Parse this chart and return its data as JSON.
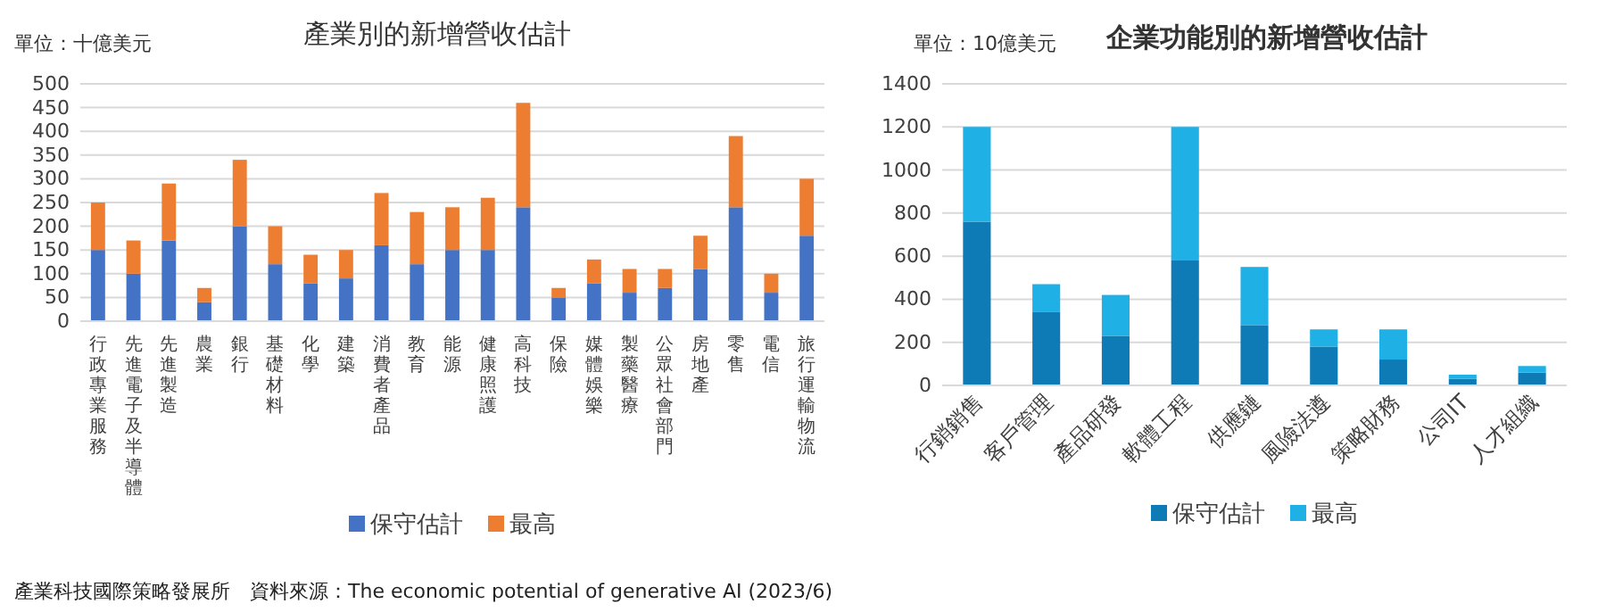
{
  "chart_data": [
    {
      "type": "bar",
      "title": "產業別的新增營收估計",
      "ylabel": "單位：十億美元",
      "stacked": true,
      "grid": "y",
      "legend": "bottom",
      "categories": [
        "行政專業服務",
        "先進電子及半導體",
        "先進製造",
        "農業",
        "銀行",
        "基礎材料",
        "化學",
        "建築",
        "消費者產品",
        "教育",
        "能源",
        "健康照護",
        "高科技",
        "保險",
        "媒體娛樂",
        "製藥醫療",
        "公眾社會部門",
        "房地產",
        "零售",
        "電信",
        "旅行運輸物流"
      ],
      "series": [
        {
          "name": "保守估計",
          "color": "#4472c4",
          "values": [
            150,
            100,
            170,
            40,
            200,
            120,
            80,
            90,
            160,
            120,
            150,
            150,
            240,
            50,
            80,
            60,
            70,
            110,
            240,
            60,
            180
          ]
        },
        {
          "name": "最高",
          "color": "#ed7d31",
          "values": [
            100,
            70,
            120,
            30,
            140,
            80,
            60,
            60,
            110,
            110,
            90,
            110,
            220,
            20,
            50,
            50,
            40,
            70,
            150,
            40,
            120
          ]
        }
      ],
      "ylim": [
        0,
        500
      ],
      "yticks": [
        0,
        50,
        100,
        150,
        200,
        250,
        300,
        350,
        400,
        450,
        500
      ],
      "annotations": [
        "產業科技國際策略發展所　資料來源：The economic potential of generative AI (2023/6)"
      ]
    },
    {
      "type": "bar",
      "title": "企業功能別的新增營收估計",
      "ylabel": "單位：10億美元",
      "stacked": true,
      "grid": "y",
      "legend": "bottom",
      "categories": [
        "行銷銷售",
        "客戶管理",
        "產品研發",
        "軟體工程",
        "供應鏈",
        "風險法遵",
        "策略財務",
        "公司IT",
        "人才組織"
      ],
      "series": [
        {
          "name": "保守估計",
          "color": "#0f7bb6",
          "values": [
            760,
            340,
            230,
            580,
            280,
            180,
            120,
            30,
            60
          ]
        },
        {
          "name": "最高",
          "color": "#1fb0e6",
          "values": [
            440,
            130,
            190,
            620,
            270,
            80,
            140,
            20,
            30
          ]
        }
      ],
      "ylim": [
        0,
        1400
      ],
      "yticks": [
        0,
        200,
        400,
        600,
        800,
        1000,
        1200,
        1400
      ]
    }
  ]
}
